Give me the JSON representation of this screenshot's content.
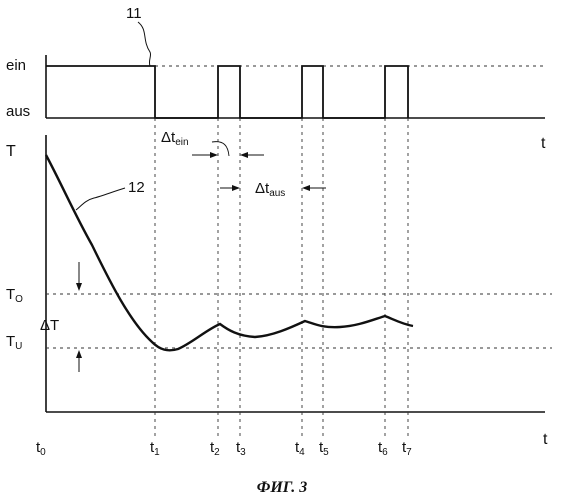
{
  "top_plot": {
    "label_on": "ein",
    "label_off": "aus",
    "time_axis_label": "t",
    "curve_ref": "11"
  },
  "bottom_plot": {
    "value_axis_label": "T",
    "time_axis_label": "t",
    "curve_ref": "12",
    "upper_threshold": {
      "base": "T",
      "sub": "O"
    },
    "lower_threshold": {
      "base": "T",
      "sub": "U"
    },
    "hysteresis": "ΔT",
    "time_ticks": [
      {
        "base": "t",
        "sub": "0"
      },
      {
        "base": "t",
        "sub": "1"
      },
      {
        "base": "t",
        "sub": "2"
      },
      {
        "base": "t",
        "sub": "3"
      },
      {
        "base": "t",
        "sub": "4"
      },
      {
        "base": "t",
        "sub": "5"
      },
      {
        "base": "t",
        "sub": "6"
      },
      {
        "base": "t",
        "sub": "7"
      }
    ]
  },
  "intervals": {
    "on_interval": {
      "base": "Δt",
      "sub": "ein"
    },
    "off_interval": {
      "base": "Δt",
      "sub": "aus"
    }
  },
  "caption": "ФИГ. 3"
}
